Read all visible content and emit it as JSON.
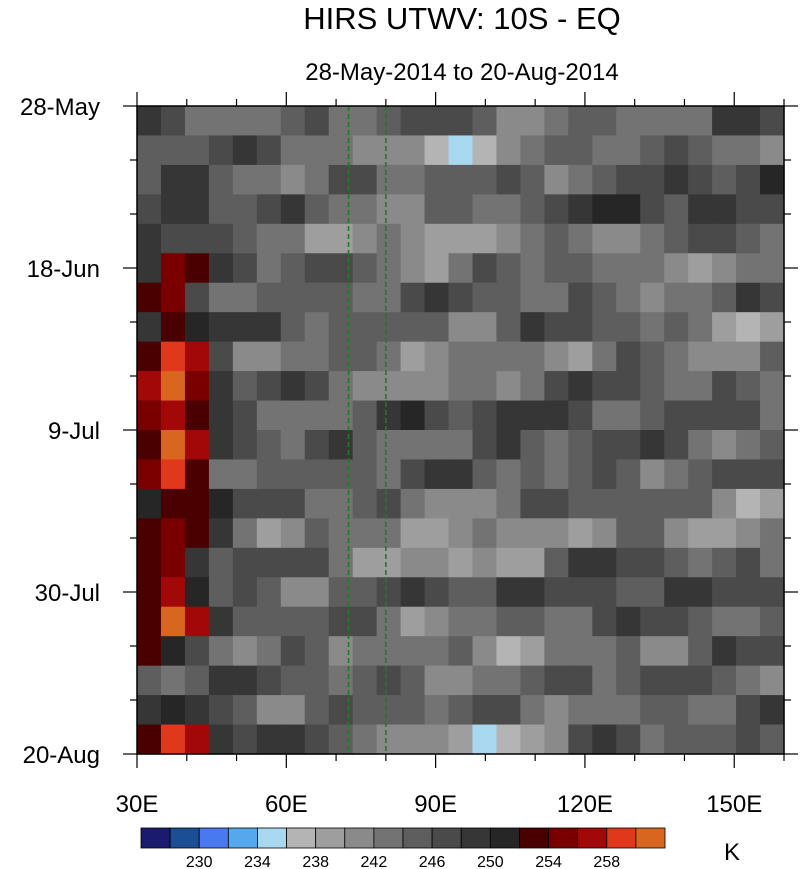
{
  "chart_data": {
    "type": "heatmap",
    "title": "HIRS UTWV: 10S - EQ",
    "subtitle": "28-May-2014 to 20-Aug-2014",
    "x_axis": {
      "range": [
        30,
        160
      ],
      "tick_values": [
        30,
        60,
        90,
        120,
        150
      ],
      "tick_labels": [
        "30E",
        "60E",
        "90E",
        "120E",
        "150E"
      ],
      "minor_step": 10
    },
    "y_axis": {
      "range_days": [
        0,
        84
      ],
      "tick_values": [
        0,
        21,
        42,
        63,
        84
      ],
      "tick_labels": [
        "28-May",
        "18-Jun",
        "9-Jul",
        "30-Jul",
        "20-Aug"
      ],
      "minor_step": 7,
      "direction": "time increases downward"
    },
    "reference_lines": [
      {
        "x": 72.5,
        "style": "dashed",
        "color": "#1e7d1e"
      },
      {
        "x": 80,
        "style": "dashed",
        "color": "#1e7d1e"
      }
    ],
    "colorbar": {
      "unit": "K",
      "levels": [
        228,
        230,
        232,
        234,
        236,
        238,
        240,
        242,
        244,
        246,
        248,
        250,
        252,
        254,
        256,
        258,
        260
      ],
      "labels": [
        "230",
        "234",
        "238",
        "242",
        "246",
        "250",
        "254",
        "258"
      ],
      "colors": [
        "#1a1a6e",
        "#1b4e94",
        "#4a78f0",
        "#55a8ec",
        "#a8d8f0",
        "#b4b4b4",
        "#9e9e9e",
        "#8a8a8a",
        "#737373",
        "#5e5e5e",
        "#4a4a4a",
        "#363636",
        "#262626",
        "#4a0000",
        "#7a0000",
        "#a30808",
        "#e0381a",
        "#d8661e"
      ]
    },
    "field": {
      "grid_rows": 22,
      "grid_cols": 27,
      "background_value": 245,
      "features": [
        {
          "name": "west-warm-band",
          "lon": 37,
          "day": 42,
          "dlon": 8,
          "dday": 24,
          "amp": 13
        },
        {
          "name": "warm-core-jul",
          "lon": 38,
          "day": 36,
          "dlon": 6,
          "dday": 5,
          "amp": 4
        },
        {
          "name": "warm-core-jun",
          "lon": 38,
          "day": 20,
          "dlon": 5,
          "dday": 3,
          "amp": 3
        },
        {
          "name": "warm-patch-jul",
          "lon": 36,
          "day": 66,
          "dlon": 7,
          "dday": 4,
          "amp": 12
        },
        {
          "name": "warm-patch-aug",
          "lon": 40,
          "day": 82,
          "dlon": 9,
          "dday": 3,
          "amp": 13
        },
        {
          "name": "moist-streak-early",
          "lon": 95,
          "day": 6,
          "dlon": 24,
          "dday": 3,
          "amp": -6
        },
        {
          "name": "moist-streak-jun",
          "lon": 88,
          "day": 17,
          "dlon": 22,
          "dday": 3,
          "amp": -7
        },
        {
          "name": "moist-streak-jun2",
          "lon": 135,
          "day": 21,
          "dlon": 10,
          "dday": 2.5,
          "amp": -6
        },
        {
          "name": "moist-streak-jul",
          "lon": 90,
          "day": 34,
          "dlon": 20,
          "dday": 3,
          "amp": -6
        },
        {
          "name": "moist-streak-jul2",
          "lon": 150,
          "day": 30,
          "dlon": 12,
          "dday": 3,
          "amp": -7
        },
        {
          "name": "moist-streak-mid",
          "lon": 95,
          "day": 57,
          "dlon": 24,
          "dday": 4,
          "amp": -7
        },
        {
          "name": "moist-streak-late",
          "lon": 100,
          "day": 70,
          "dlon": 20,
          "dday": 3,
          "amp": -6
        },
        {
          "name": "moist-streak-aug",
          "lon": 100,
          "day": 82,
          "dlon": 16,
          "dday": 3,
          "amp": -7
        },
        {
          "name": "moist-east-aug",
          "lon": 150,
          "day": 54,
          "dlon": 12,
          "dday": 4,
          "amp": -6
        },
        {
          "name": "dry-band-east",
          "lon": 135,
          "day": 12,
          "dlon": 25,
          "dday": 3,
          "amp": 4
        },
        {
          "name": "dry-band-east2",
          "lon": 125,
          "day": 62,
          "dlon": 30,
          "dday": 3,
          "amp": 4
        },
        {
          "name": "dry-band-mid",
          "lon": 110,
          "day": 40,
          "dlon": 25,
          "dday": 3,
          "amp": 3
        }
      ]
    }
  }
}
